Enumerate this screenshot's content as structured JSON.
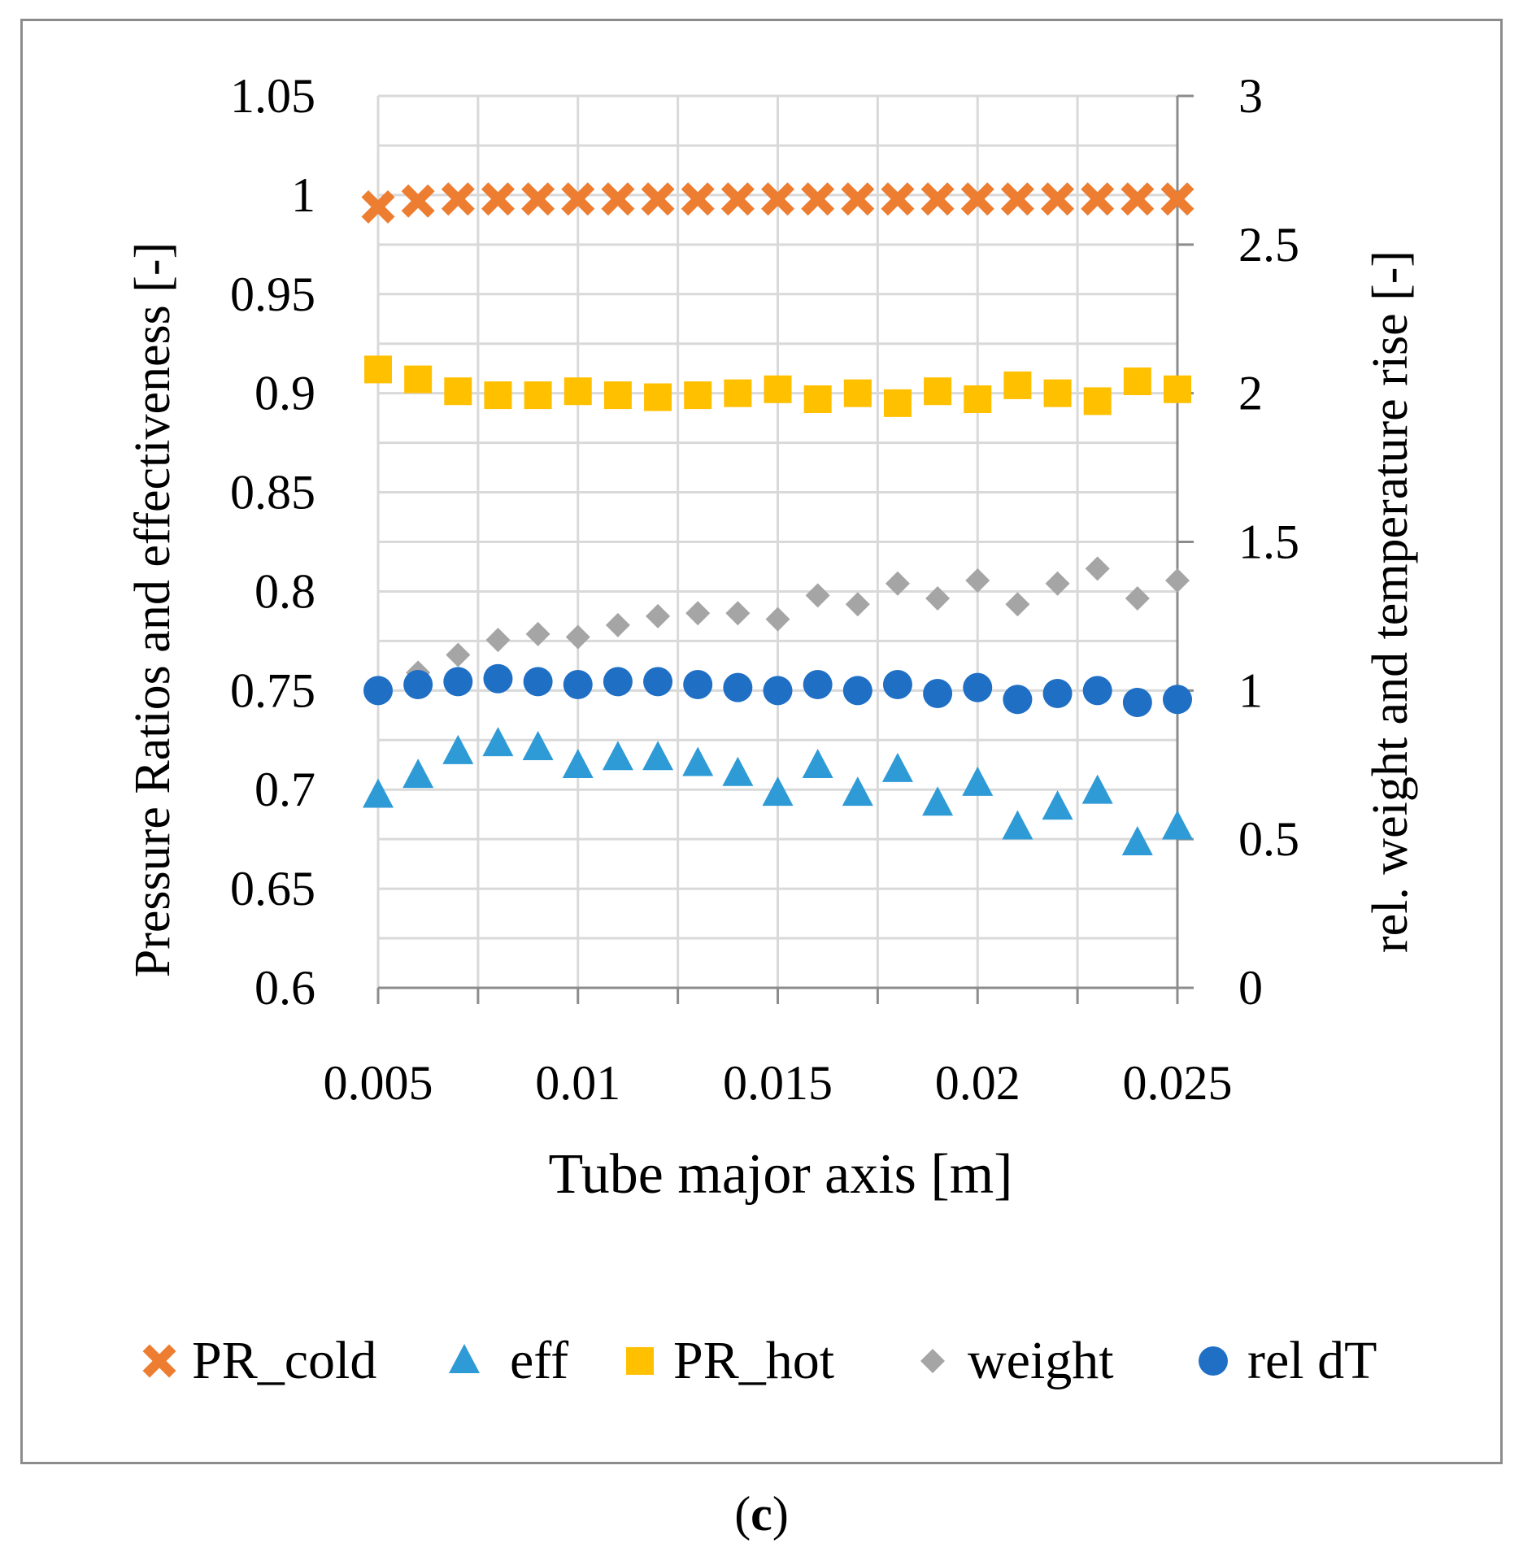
{
  "chart_data": {
    "type": "scatter",
    "xlabel": "Tube major axis [m]",
    "ylabel_left": "Pressure Ratios and effectiveness [-]",
    "ylabel_right": "rel. weight and temperature rise [-]",
    "xlim": [
      0.005,
      0.025
    ],
    "ylim_left": [
      0.6,
      1.05
    ],
    "ylim_right": [
      0,
      3
    ],
    "x_ticks": [
      "0.005",
      "0.01",
      "0.015",
      "0.02",
      "0.025"
    ],
    "y_left_ticks": [
      "0.6",
      "0.65",
      "0.7",
      "0.75",
      "0.8",
      "0.85",
      "0.9",
      "0.95",
      "1",
      "1.05"
    ],
    "y_right_ticks": [
      "0",
      "0.5",
      "1",
      "1.5",
      "2",
      "2.5",
      "3"
    ],
    "grid": true,
    "legend_position": "bottom",
    "x": [
      0.005,
      0.006,
      0.007,
      0.008,
      0.009,
      0.01,
      0.011,
      0.012,
      0.013,
      0.014,
      0.015,
      0.016,
      0.017,
      0.018,
      0.019,
      0.02,
      0.021,
      0.022,
      0.023,
      0.024,
      0.025
    ],
    "series": [
      {
        "name": "PR_cold",
        "axis": "left",
        "marker": "x",
        "color": "#ED7D31",
        "values": [
          0.994,
          0.997,
          0.998,
          0.998,
          0.998,
          0.998,
          0.998,
          0.998,
          0.998,
          0.998,
          0.998,
          0.998,
          0.998,
          0.998,
          0.998,
          0.998,
          0.998,
          0.998,
          0.998,
          0.998,
          0.998
        ]
      },
      {
        "name": "eff",
        "axis": "left",
        "marker": "triangle",
        "color": "#2E9BD6",
        "values": [
          0.697,
          0.707,
          0.719,
          0.723,
          0.721,
          0.712,
          0.716,
          0.716,
          0.713,
          0.708,
          0.698,
          0.712,
          0.698,
          0.71,
          0.693,
          0.703,
          0.681,
          0.691,
          0.699,
          0.673,
          0.681
        ]
      },
      {
        "name": "PR_hot",
        "axis": "left",
        "marker": "square",
        "color": "#FFC000",
        "values": [
          0.912,
          0.907,
          0.901,
          0.899,
          0.899,
          0.901,
          0.899,
          0.898,
          0.899,
          0.9,
          0.902,
          0.897,
          0.9,
          0.895,
          0.901,
          0.897,
          0.904,
          0.9,
          0.896,
          0.906,
          0.902
        ]
      },
      {
        "name": "weight",
        "axis": "right",
        "marker": "diamond",
        "color": "#A5A5A5",
        "values": [
          1.0,
          1.06,
          1.12,
          1.17,
          1.19,
          1.18,
          1.22,
          1.25,
          1.26,
          1.26,
          1.24,
          1.32,
          1.29,
          1.36,
          1.31,
          1.37,
          1.29,
          1.36,
          1.41,
          1.31,
          1.37
        ]
      },
      {
        "name": "rel dT",
        "axis": "right",
        "marker": "circle",
        "color": "#1F6FC5",
        "values": [
          1.0,
          1.02,
          1.03,
          1.04,
          1.03,
          1.02,
          1.03,
          1.03,
          1.02,
          1.01,
          1.0,
          1.02,
          1.0,
          1.02,
          0.99,
          1.01,
          0.97,
          0.99,
          1.0,
          0.96,
          0.97
        ]
      }
    ]
  },
  "caption": {
    "open": "(",
    "letter": "c",
    "close": ")"
  }
}
